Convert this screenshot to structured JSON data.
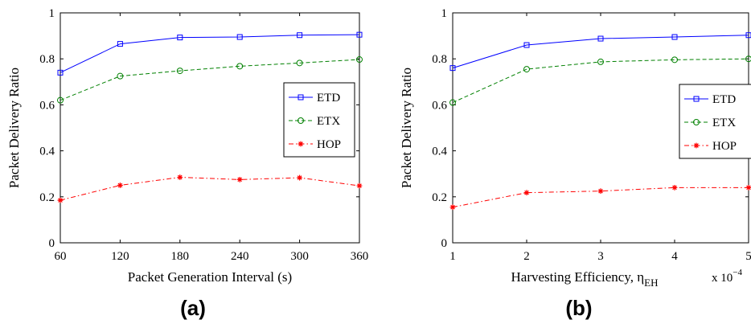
{
  "chart_data": [
    {
      "type": "line",
      "panel_label": "(a)",
      "xlabel": "Packet Generation Interval (s)",
      "ylabel": "Packet Delivery Ratio",
      "x": [
        60,
        120,
        180,
        240,
        300,
        360
      ],
      "xticks": [
        "60",
        "120",
        "180",
        "240",
        "300",
        "360"
      ],
      "xlim": [
        60,
        360
      ],
      "ylim": [
        0,
        1
      ],
      "yticks": [
        "0",
        "0.2",
        "0.4",
        "0.6",
        "0.8",
        "1"
      ],
      "grid": false,
      "legend_position": "center-right",
      "series": [
        {
          "name": "ETD",
          "values": [
            0.74,
            0.865,
            0.893,
            0.895,
            0.903,
            0.905
          ],
          "color": "#0000ff",
          "line_style": "solid",
          "marker": "square"
        },
        {
          "name": "ETX",
          "values": [
            0.62,
            0.725,
            0.748,
            0.768,
            0.782,
            0.797
          ],
          "color": "#008000",
          "line_style": "dashed",
          "marker": "circle"
        },
        {
          "name": "HOP",
          "values": [
            0.185,
            0.25,
            0.285,
            0.275,
            0.283,
            0.248
          ],
          "color": "#ff0000",
          "line_style": "dashdot",
          "marker": "star"
        }
      ]
    },
    {
      "type": "line",
      "panel_label": "(b)",
      "xlabel": "Harvesting Efficiency, η",
      "xlabel_sub": "EH",
      "ylabel": "Packet Delivery Ratio",
      "x": [
        1,
        2,
        3,
        4,
        5
      ],
      "xticks": [
        "1",
        "2",
        "3",
        "4",
        "5"
      ],
      "x_multiplier": "x 10",
      "x_multiplier_exp": "−4",
      "xlim": [
        1,
        5
      ],
      "ylim": [
        0,
        1
      ],
      "yticks": [
        "0",
        "0.2",
        "0.4",
        "0.6",
        "0.8",
        "1"
      ],
      "grid": false,
      "legend_position": "center-right",
      "series": [
        {
          "name": "ETD",
          "values": [
            0.76,
            0.86,
            0.888,
            0.895,
            0.903
          ],
          "color": "#0000ff",
          "line_style": "solid",
          "marker": "square"
        },
        {
          "name": "ETX",
          "values": [
            0.61,
            0.755,
            0.787,
            0.796,
            0.8
          ],
          "color": "#008000",
          "line_style": "dashed",
          "marker": "circle"
        },
        {
          "name": "HOP",
          "values": [
            0.155,
            0.218,
            0.225,
            0.24,
            0.24
          ],
          "color": "#ff0000",
          "line_style": "dashdot",
          "marker": "star"
        }
      ]
    }
  ]
}
